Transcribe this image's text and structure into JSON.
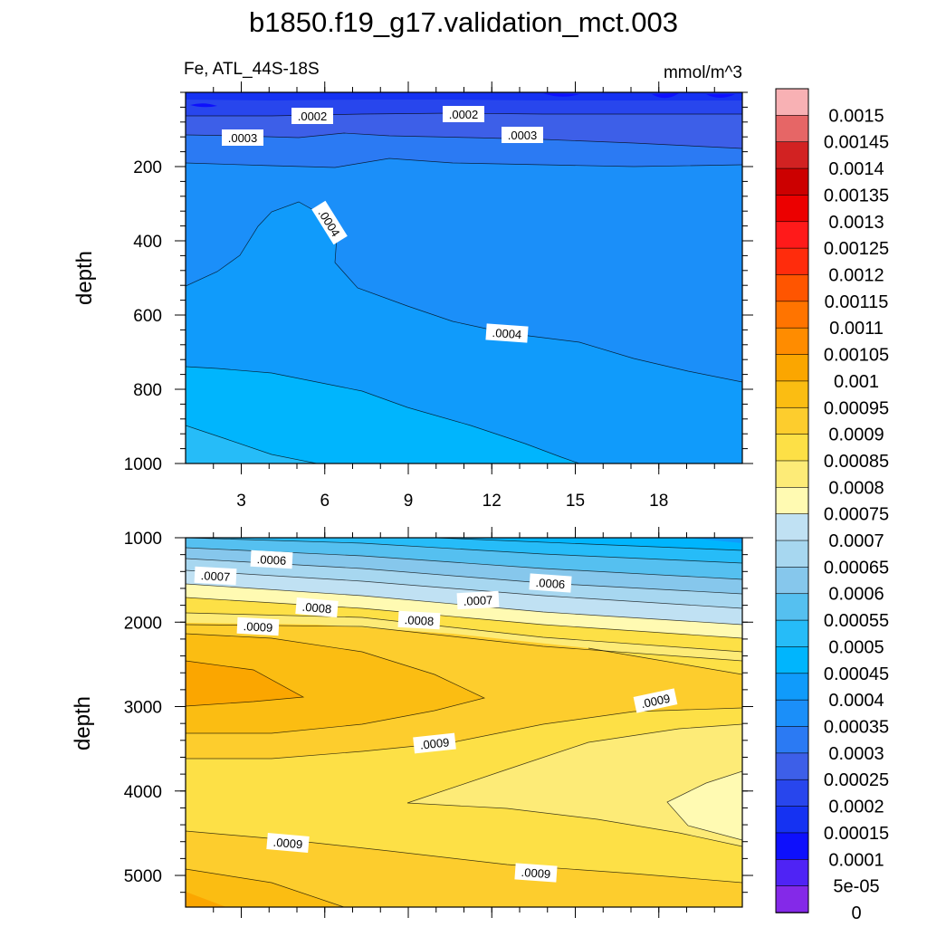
{
  "chart_data": {
    "type": "contour",
    "title": "b1850.f19_g17.validation_mct.003",
    "variable_label": "Fe, ATL_44S-18S",
    "units_label": "mmol/m^3",
    "colorbar": {
      "levels": [
        "0.0015",
        "0.00145",
        "0.0014",
        "0.00135",
        "0.0013",
        "0.00125",
        "0.0012",
        "0.00115",
        "0.0011",
        "0.00105",
        "0.001",
        "0.00095",
        "0.0009",
        "0.00085",
        "0.0008",
        "0.00075",
        "0.0007",
        "0.00065",
        "0.0006",
        "0.00055",
        "0.0005",
        "0.00045",
        "0.0004",
        "0.00035",
        "0.0003",
        "0.00025",
        "0.0002",
        "0.00015",
        "0.0001",
        "5e-05",
        "0"
      ],
      "colors": [
        "#f8b1b4",
        "#e66666",
        "#d22222",
        "#cc0000",
        "#ec0000",
        "#ff1a1a",
        "#ff2c0c",
        "#ff5500",
        "#ff7400",
        "#ff8c00",
        "#fba600",
        "#fbbd12",
        "#fdcd2d",
        "#fde046",
        "#fdeb77",
        "#fffab2",
        "#c0e1f3",
        "#a7d7f0",
        "#86c7ec",
        "#55c0f0",
        "#26bcf8",
        "#00b5fd",
        "#109bfb",
        "#1b8ff9",
        "#2b7af3",
        "#3d5fe8",
        "#2846ed",
        "#1532f2",
        "#0e10fc",
        "#4f23f5",
        "#8429e8"
      ]
    },
    "upper_panel": {
      "xlabel": "",
      "ylabel": "depth",
      "xlim": [
        1,
        21
      ],
      "ylim": [
        0,
        1000
      ],
      "y_inverted": true,
      "xticks": [
        "3",
        "6",
        "9",
        "12",
        "15",
        "18"
      ],
      "yticks": [
        "200",
        "400",
        "600",
        "800",
        "1000"
      ],
      "contour_labels": [
        ".0002",
        ".0002",
        ".0003",
        ".0003",
        ".0004",
        ".0004"
      ]
    },
    "lower_panel": {
      "xlabel": "",
      "ylabel": "depth",
      "xlim": [
        1,
        21
      ],
      "ylim": [
        1000,
        5375
      ],
      "y_inverted": true,
      "yticks": [
        "1000",
        "2000",
        "3000",
        "4000",
        "5000"
      ],
      "contour_labels": [
        ".0006",
        ".0006",
        ".0007",
        ".0007",
        ".0008",
        ".0008",
        ".0009",
        ".0009",
        ".0009",
        ".0009",
        ".0009"
      ]
    }
  }
}
